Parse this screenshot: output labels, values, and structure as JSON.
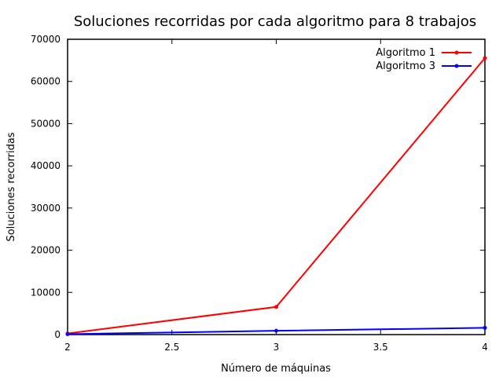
{
  "chart_data": {
    "type": "line",
    "title": "Soluciones recorridas por cada algoritmo para 8 trabajos",
    "xlabel": "Número de máquinas",
    "ylabel": "Soluciones recorridas",
    "xlim": [
      2,
      4
    ],
    "ylim": [
      0,
      70000
    ],
    "x_ticks": [
      "2",
      "2.5",
      "3",
      "3.5",
      "4"
    ],
    "y_ticks": [
      "0",
      "10000",
      "20000",
      "30000",
      "40000",
      "50000",
      "60000",
      "70000"
    ],
    "grid": false,
    "legend_position": "top-right",
    "series": [
      {
        "name": "Algoritmo 1",
        "color": "#ff0000",
        "x": [
          2,
          3,
          4
        ],
        "y": [
          256,
          6561,
          65536
        ]
      },
      {
        "name": "Algoritmo 3",
        "color": "#0000ff",
        "x": [
          2,
          3,
          4
        ],
        "y": [
          100,
          900,
          1600
        ]
      }
    ]
  }
}
